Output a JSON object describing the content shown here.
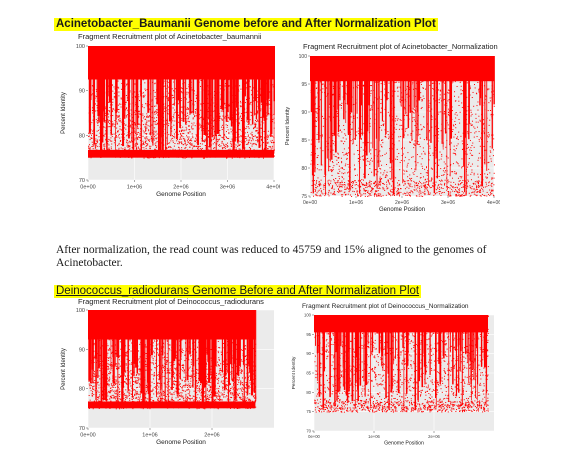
{
  "sections": [
    {
      "heading": "Acinetobacter_Baumanii Genome before and After Normalization Plot",
      "heading_underlined": false,
      "note": "After normalization, the read count was reduced to 45759 and 15% aligned to the genomes of Acinetobacter."
    },
    {
      "heading": "Deinococcus_radiodurans Genome Before and After Normalization Plot",
      "heading_underlined": true
    }
  ],
  "chart_data": [
    {
      "type": "scatter",
      "title": "Fragment Recruitment plot of Acinetobacter_baumannii",
      "xlabel": "Genome Position",
      "ylabel": "Percent Identity",
      "xlim": [
        0,
        4000000
      ],
      "ylim": [
        70,
        100
      ],
      "xticks": [
        "0e+00",
        "1e+06",
        "2e+06",
        "3e+06",
        "4e+06"
      ],
      "yticks": [
        "70",
        "80",
        "90",
        "100"
      ],
      "x_extent": [
        0,
        4000000
      ],
      "y_extent": [
        75,
        100
      ],
      "color": "#ff0000",
      "background": "#ebebeb",
      "density": "dense"
    },
    {
      "type": "scatter",
      "title": "Fragment Recruitment plot of Acinetobacter_Normalization",
      "xlabel": "Genome Position",
      "ylabel": "Percent Identity",
      "xlim": [
        0,
        4000000
      ],
      "ylim": [
        75,
        100
      ],
      "xticks": [
        "0e+00",
        "1e+06",
        "2e+06",
        "3e+06",
        "4e+06"
      ],
      "yticks": [
        "75",
        "80",
        "85",
        "90",
        "95",
        "100"
      ],
      "x_extent": [
        0,
        4000000
      ],
      "y_extent": [
        75,
        100
      ],
      "color": "#ff0000",
      "background": "#ebebeb",
      "density": "sparse"
    },
    {
      "type": "scatter",
      "title": "Fragment Recruitment plot of Deinococcus_radiodurans",
      "xlabel": "Genome Position",
      "ylabel": "Percent Identity",
      "xlim": [
        0,
        3000000
      ],
      "ylim": [
        70,
        100
      ],
      "xticks": [
        "0e+00",
        "1e+06",
        "2e+06"
      ],
      "yticks": [
        "70",
        "80",
        "90",
        "100"
      ],
      "x_extent": [
        0,
        2700000
      ],
      "y_extent": [
        75,
        100
      ],
      "color": "#ff0000",
      "background": "#ebebeb",
      "density": "dense"
    },
    {
      "type": "scatter",
      "title": "Fragment Recruitment plot of Deinococcus_Normalization",
      "xlabel": "Genome Position",
      "ylabel": "Percent Identity",
      "xlim": [
        0,
        3000000
      ],
      "ylim": [
        70,
        100
      ],
      "xticks": [
        "0e+00",
        "1e+06",
        "2e+06"
      ],
      "yticks": [
        "70",
        "75",
        "80",
        "85",
        "90",
        "95",
        "100"
      ],
      "x_extent": [
        0,
        2900000
      ],
      "y_extent": [
        75,
        100
      ],
      "color": "#ff0000",
      "background": "#ebebeb",
      "density": "sparse"
    }
  ]
}
